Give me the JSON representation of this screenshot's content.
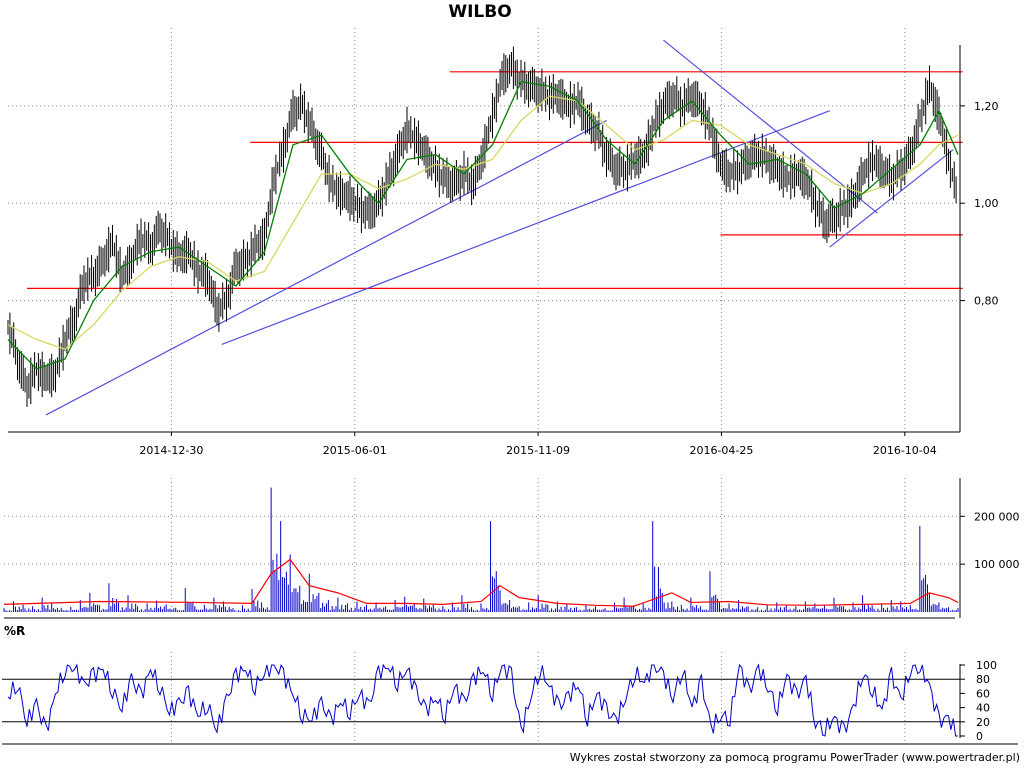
{
  "title": "WILBO",
  "footer": "Wykres został stworzony za pomocą programu PowerTrader (www.powertrader.pl)",
  "colors": {
    "bar": "#000000",
    "ma_short": "#008000",
    "ma_long": "#d8d860",
    "support_resistance": "#ff0000",
    "trendline": "#5050e0",
    "volume": "#0000cc",
    "volume_avg": "#ff0000",
    "rsi": "#0000cc",
    "grid": "#888888"
  },
  "chart_data": [
    {
      "name": "price",
      "type": "line",
      "title": "WILBO",
      "grid": true,
      "y_axis_side": "right",
      "x_tick_labels": [
        "2014-12-30",
        "2015-06-01",
        "2015-11-09",
        "2016-04-25",
        "2016-10-04"
      ],
      "y_tick_labels": [
        "0,80",
        "1,00",
        "1,20"
      ],
      "y_ticks": [
        0.8,
        1.0,
        1.2
      ],
      "ylim": [
        0.53,
        1.36
      ],
      "x_range": [
        0,
        100
      ],
      "x_tick_positions": [
        17.2,
        36.5,
        55.8,
        75.1,
        94.4
      ],
      "close_series": [
        [
          0,
          0.75
        ],
        [
          1,
          0.68
        ],
        [
          2,
          0.62
        ],
        [
          3,
          0.66
        ],
        [
          4,
          0.64
        ],
        [
          5,
          0.65
        ],
        [
          6,
          0.72
        ],
        [
          7,
          0.76
        ],
        [
          8,
          0.84
        ],
        [
          9,
          0.85
        ],
        [
          10,
          0.88
        ],
        [
          11,
          0.92
        ],
        [
          12,
          0.85
        ],
        [
          13,
          0.88
        ],
        [
          14,
          0.93
        ],
        [
          15,
          0.91
        ],
        [
          16,
          0.95
        ],
        [
          17,
          0.92
        ],
        [
          18,
          0.89
        ],
        [
          19,
          0.9
        ],
        [
          20,
          0.86
        ],
        [
          21,
          0.85
        ],
        [
          22,
          0.78
        ],
        [
          23,
          0.8
        ],
        [
          24,
          0.87
        ],
        [
          25,
          0.88
        ],
        [
          26,
          0.91
        ],
        [
          27,
          0.93
        ],
        [
          28,
          1.05
        ],
        [
          29,
          1.11
        ],
        [
          30,
          1.19
        ],
        [
          31,
          1.2
        ],
        [
          32,
          1.15
        ],
        [
          33,
          1.1
        ],
        [
          34,
          1.04
        ],
        [
          35,
          1.02
        ],
        [
          36,
          1.01
        ],
        [
          37,
          0.99
        ],
        [
          38,
          0.98
        ],
        [
          39,
          1.0
        ],
        [
          40,
          1.05
        ],
        [
          41,
          1.1
        ],
        [
          42,
          1.15
        ],
        [
          43,
          1.13
        ],
        [
          44,
          1.1
        ],
        [
          45,
          1.07
        ],
        [
          46,
          1.05
        ],
        [
          47,
          1.04
        ],
        [
          48,
          1.06
        ],
        [
          49,
          1.04
        ],
        [
          50,
          1.1
        ],
        [
          51,
          1.18
        ],
        [
          52,
          1.26
        ],
        [
          53,
          1.28
        ],
        [
          54,
          1.25
        ],
        [
          55,
          1.24
        ],
        [
          56,
          1.23
        ],
        [
          57,
          1.22
        ],
        [
          58,
          1.22
        ],
        [
          59,
          1.2
        ],
        [
          60,
          1.21
        ],
        [
          61,
          1.17
        ],
        [
          62,
          1.15
        ],
        [
          63,
          1.1
        ],
        [
          64,
          1.07
        ],
        [
          65,
          1.07
        ],
        [
          66,
          1.09
        ],
        [
          67,
          1.1
        ],
        [
          68,
          1.16
        ],
        [
          69,
          1.2
        ],
        [
          70,
          1.22
        ],
        [
          71,
          1.2
        ],
        [
          72,
          1.22
        ],
        [
          73,
          1.2
        ],
        [
          74,
          1.15
        ],
        [
          75,
          1.08
        ],
        [
          76,
          1.06
        ],
        [
          77,
          1.07
        ],
        [
          78,
          1.09
        ],
        [
          79,
          1.1
        ],
        [
          80,
          1.09
        ],
        [
          81,
          1.07
        ],
        [
          82,
          1.05
        ],
        [
          83,
          1.06
        ],
        [
          84,
          1.05
        ],
        [
          85,
          1.0
        ],
        [
          86,
          0.96
        ],
        [
          87,
          0.97
        ],
        [
          88,
          0.99
        ],
        [
          89,
          1.01
        ],
        [
          90,
          1.06
        ],
        [
          91,
          1.09
        ],
        [
          92,
          1.07
        ],
        [
          93,
          1.05
        ],
        [
          94,
          1.07
        ],
        [
          95,
          1.1
        ],
        [
          96,
          1.17
        ],
        [
          97,
          1.24
        ],
        [
          98,
          1.18
        ],
        [
          99,
          1.09
        ],
        [
          100,
          1.01
        ]
      ],
      "ma_short": [
        [
          0,
          0.72
        ],
        [
          3,
          0.66
        ],
        [
          6,
          0.68
        ],
        [
          9,
          0.8
        ],
        [
          12,
          0.87
        ],
        [
          15,
          0.9
        ],
        [
          18,
          0.91
        ],
        [
          21,
          0.87
        ],
        [
          24,
          0.83
        ],
        [
          27,
          0.9
        ],
        [
          30,
          1.12
        ],
        [
          33,
          1.14
        ],
        [
          36,
          1.06
        ],
        [
          39,
          1.0
        ],
        [
          42,
          1.09
        ],
        [
          45,
          1.1
        ],
        [
          48,
          1.06
        ],
        [
          51,
          1.12
        ],
        [
          54,
          1.25
        ],
        [
          57,
          1.24
        ],
        [
          60,
          1.21
        ],
        [
          63,
          1.13
        ],
        [
          66,
          1.08
        ],
        [
          69,
          1.17
        ],
        [
          72,
          1.21
        ],
        [
          75,
          1.14
        ],
        [
          78,
          1.08
        ],
        [
          81,
          1.09
        ],
        [
          84,
          1.06
        ],
        [
          87,
          0.99
        ],
        [
          90,
          1.02
        ],
        [
          93,
          1.07
        ],
        [
          96,
          1.12
        ],
        [
          98,
          1.19
        ],
        [
          100,
          1.1
        ]
      ],
      "ma_long": [
        [
          0,
          0.75
        ],
        [
          3,
          0.72
        ],
        [
          6,
          0.7
        ],
        [
          9,
          0.75
        ],
        [
          12,
          0.82
        ],
        [
          15,
          0.87
        ],
        [
          18,
          0.89
        ],
        [
          21,
          0.88
        ],
        [
          24,
          0.84
        ],
        [
          27,
          0.86
        ],
        [
          30,
          0.96
        ],
        [
          33,
          1.06
        ],
        [
          36,
          1.06
        ],
        [
          39,
          1.03
        ],
        [
          42,
          1.05
        ],
        [
          45,
          1.08
        ],
        [
          48,
          1.07
        ],
        [
          51,
          1.09
        ],
        [
          54,
          1.17
        ],
        [
          57,
          1.22
        ],
        [
          60,
          1.21
        ],
        [
          63,
          1.16
        ],
        [
          66,
          1.11
        ],
        [
          69,
          1.13
        ],
        [
          72,
          1.17
        ],
        [
          75,
          1.16
        ],
        [
          78,
          1.12
        ],
        [
          81,
          1.1
        ],
        [
          84,
          1.08
        ],
        [
          87,
          1.04
        ],
        [
          90,
          1.02
        ],
        [
          93,
          1.04
        ],
        [
          96,
          1.08
        ],
        [
          98,
          1.12
        ],
        [
          100,
          1.14
        ]
      ],
      "horizontal_levels": [
        {
          "y": 1.27,
          "x_from": 46.5,
          "x_to": 100.5
        },
        {
          "y": 1.125,
          "x_from": 25.5,
          "x_to": 100.5
        },
        {
          "y": 0.935,
          "x_from": 75.0,
          "x_to": 100.5
        },
        {
          "y": 0.825,
          "x_from": 2.0,
          "x_to": 100.5
        }
      ],
      "trendlines": [
        {
          "from": [
            4.0,
            0.565
          ],
          "to": [
            63.0,
            1.17
          ]
        },
        {
          "from": [
            22.5,
            0.71
          ],
          "to": [
            86.5,
            1.19
          ]
        },
        {
          "from": [
            69.0,
            1.335
          ],
          "to": [
            91.5,
            0.98
          ]
        },
        {
          "from": [
            86.5,
            0.91
          ],
          "to": [
            99.5,
            1.11
          ]
        }
      ]
    },
    {
      "name": "volume",
      "type": "bar",
      "grid": true,
      "y_axis_side": "right",
      "y_tick_labels": [
        "100 000",
        "200 000"
      ],
      "y_ticks": [
        100000,
        200000
      ],
      "ylim": [
        0,
        280000
      ],
      "x_range": [
        0,
        100
      ],
      "values": [
        8000,
        22000,
        15000,
        12000,
        30000,
        18000,
        9000,
        11000,
        25000,
        40000,
        14000,
        60000,
        20000,
        35000,
        12000,
        18000,
        24000,
        16000,
        9000,
        50000,
        12000,
        15000,
        30000,
        22000,
        8000,
        14000,
        48000,
        20000,
        260000,
        190000,
        120000,
        55000,
        80000,
        40000,
        25000,
        30000,
        18000,
        22000,
        15000,
        20000,
        12000,
        25000,
        32000,
        18000,
        28000,
        15000,
        12000,
        20000,
        35000,
        10000,
        18000,
        190000,
        45000,
        25000,
        12000,
        20000,
        35000,
        15000,
        22000,
        18000,
        10000,
        15000,
        12000,
        8000,
        20000,
        30000,
        14000,
        18000,
        190000,
        40000,
        22000,
        15000,
        30000,
        12000,
        85000,
        20000,
        18000,
        25000,
        12000,
        10000,
        15000,
        20000,
        14000,
        12000,
        22000,
        18000,
        15000,
        30000,
        12000,
        20000,
        35000,
        14000,
        18000,
        25000,
        22000,
        15000,
        180000,
        40000,
        20000,
        10000,
        8000
      ],
      "avg": [
        [
          0,
          16000
        ],
        [
          10,
          22000
        ],
        [
          20,
          20000
        ],
        [
          26,
          18000
        ],
        [
          28,
          80000
        ],
        [
          30,
          110000
        ],
        [
          32,
          55000
        ],
        [
          35,
          40000
        ],
        [
          38,
          18000
        ],
        [
          42,
          18000
        ],
        [
          46,
          16000
        ],
        [
          50,
          22000
        ],
        [
          52,
          55000
        ],
        [
          54,
          30000
        ],
        [
          58,
          18000
        ],
        [
          62,
          14000
        ],
        [
          66,
          12000
        ],
        [
          70,
          40000
        ],
        [
          72,
          20000
        ],
        [
          76,
          22000
        ],
        [
          80,
          15000
        ],
        [
          85,
          14000
        ],
        [
          90,
          16000
        ],
        [
          95,
          18000
        ],
        [
          97,
          40000
        ],
        [
          99,
          30000
        ],
        [
          100,
          20000
        ]
      ]
    },
    {
      "name": "%R",
      "type": "line",
      "title": "%R",
      "grid": true,
      "y_axis_side": "right",
      "y_tick_labels": [
        "0",
        "20",
        "40",
        "60",
        "80",
        "100"
      ],
      "y_ticks": [
        0,
        20,
        40,
        60,
        80,
        100
      ],
      "ylim": [
        0,
        100
      ],
      "reference_lines": [
        20,
        80
      ],
      "x_range": [
        0,
        100
      ],
      "values": [
        [
          0,
          55
        ],
        [
          1,
          75
        ],
        [
          2,
          20
        ],
        [
          3,
          45
        ],
        [
          4,
          5
        ],
        [
          5,
          60
        ],
        [
          6,
          95
        ],
        [
          7,
          100
        ],
        [
          8,
          70
        ],
        [
          9,
          85
        ],
        [
          10,
          95
        ],
        [
          11,
          65
        ],
        [
          12,
          40
        ],
        [
          13,
          80
        ],
        [
          14,
          55
        ],
        [
          15,
          95
        ],
        [
          16,
          70
        ],
        [
          17,
          35
        ],
        [
          18,
          45
        ],
        [
          19,
          60
        ],
        [
          20,
          30
        ],
        [
          21,
          45
        ],
        [
          22,
          10
        ],
        [
          23,
          50
        ],
        [
          24,
          85
        ],
        [
          25,
          95
        ],
        [
          26,
          70
        ],
        [
          27,
          90
        ],
        [
          28,
          100
        ],
        [
          29,
          85
        ],
        [
          30,
          60
        ],
        [
          31,
          30
        ],
        [
          32,
          25
        ],
        [
          33,
          45
        ],
        [
          34,
          20
        ],
        [
          35,
          50
        ],
        [
          36,
          35
        ],
        [
          37,
          60
        ],
        [
          38,
          40
        ],
        [
          39,
          90
        ],
        [
          40,
          100
        ],
        [
          41,
          75
        ],
        [
          42,
          95
        ],
        [
          43,
          60
        ],
        [
          44,
          35
        ],
        [
          45,
          55
        ],
        [
          46,
          30
        ],
        [
          47,
          70
        ],
        [
          48,
          45
        ],
        [
          49,
          80
        ],
        [
          50,
          95
        ],
        [
          51,
          60
        ],
        [
          52,
          100
        ],
        [
          53,
          85
        ],
        [
          54,
          5
        ],
        [
          55,
          55
        ],
        [
          56,
          95
        ],
        [
          57,
          70
        ],
        [
          58,
          40
        ],
        [
          59,
          55
        ],
        [
          60,
          75
        ],
        [
          61,
          25
        ],
        [
          62,
          60
        ],
        [
          63,
          35
        ],
        [
          64,
          20
        ],
        [
          65,
          55
        ],
        [
          66,
          90
        ],
        [
          67,
          75
        ],
        [
          68,
          100
        ],
        [
          69,
          85
        ],
        [
          70,
          55
        ],
        [
          71,
          95
        ],
        [
          72,
          40
        ],
        [
          73,
          75
        ],
        [
          74,
          10
        ],
        [
          75,
          30
        ],
        [
          76,
          25
        ],
        [
          77,
          100
        ],
        [
          78,
          60
        ],
        [
          79,
          95
        ],
        [
          80,
          70
        ],
        [
          81,
          40
        ],
        [
          82,
          85
        ],
        [
          83,
          55
        ],
        [
          84,
          80
        ],
        [
          85,
          20
        ],
        [
          86,
          10
        ],
        [
          87,
          25
        ],
        [
          88,
          5
        ],
        [
          89,
          40
        ],
        [
          90,
          90
        ],
        [
          91,
          65
        ],
        [
          92,
          35
        ],
        [
          93,
          85
        ],
        [
          94,
          50
        ],
        [
          95,
          95
        ],
        [
          96,
          100
        ],
        [
          97,
          70
        ],
        [
          98,
          20
        ],
        [
          99,
          25
        ],
        [
          100,
          0
        ]
      ]
    }
  ]
}
